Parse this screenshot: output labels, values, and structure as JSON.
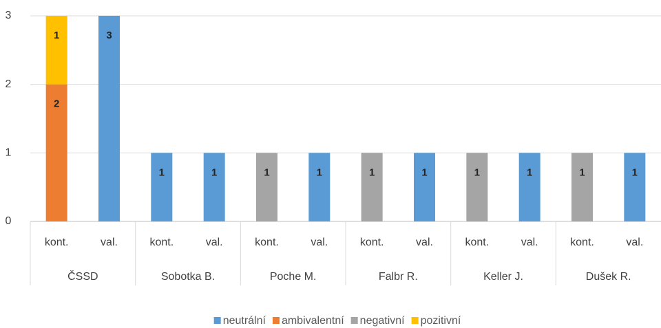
{
  "chart_data": {
    "type": "stacked_bar",
    "categories": [
      "kont.",
      "val.",
      "kont.",
      "val.",
      "kont.",
      "val.",
      "kont.",
      "val.",
      "kont.",
      "val.",
      "kont.",
      "val."
    ],
    "groups": [
      "ČSSD",
      "Sobotka B.",
      "Poche M.",
      "Falbr R.",
      "Keller J.",
      "Dušek R."
    ],
    "series": [
      {
        "name": "neutrální",
        "color": "#5b9bd5",
        "values": [
          null,
          3,
          1,
          1,
          null,
          1,
          null,
          1,
          null,
          1,
          null,
          1
        ]
      },
      {
        "name": "ambivalentní",
        "color": "#ed7d31",
        "values": [
          2,
          null,
          null,
          null,
          null,
          null,
          null,
          null,
          null,
          null,
          null,
          null
        ]
      },
      {
        "name": "negativní",
        "color": "#a5a5a5",
        "values": [
          null,
          null,
          null,
          null,
          1,
          null,
          1,
          null,
          1,
          null,
          1,
          null
        ]
      },
      {
        "name": "pozitivní",
        "color": "#ffc000",
        "values": [
          1,
          null,
          null,
          null,
          null,
          null,
          null,
          null,
          null,
          null,
          null,
          null
        ]
      }
    ],
    "ylim": [
      0,
      3
    ],
    "yticks": [
      0,
      1,
      2,
      3
    ],
    "grid": true,
    "legend": "bottom"
  }
}
